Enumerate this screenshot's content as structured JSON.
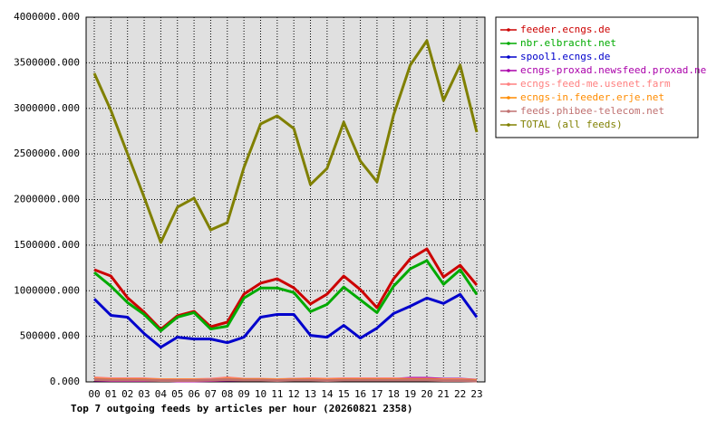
{
  "chart_data": {
    "type": "line",
    "title": "Top 7 outgoing feeds by articles per hour (20260821 2358)",
    "categories": [
      "00",
      "01",
      "02",
      "03",
      "04",
      "05",
      "06",
      "07",
      "08",
      "09",
      "10",
      "11",
      "12",
      "13",
      "14",
      "15",
      "16",
      "17",
      "18",
      "19",
      "20",
      "21",
      "22",
      "23"
    ],
    "ylim": [
      0,
      4000000
    ],
    "yticks": [
      {
        "value": 0,
        "label": "0.000"
      },
      {
        "value": 500000,
        "label": "500000.000"
      },
      {
        "value": 1000000,
        "label": "1000000.000"
      },
      {
        "value": 1500000,
        "label": "1500000.000"
      },
      {
        "value": 2000000,
        "label": "2000000.000"
      },
      {
        "value": 2500000,
        "label": "2500000.000"
      },
      {
        "value": 3000000,
        "label": "3000000.000"
      },
      {
        "value": 3500000,
        "label": "3500000.000"
      },
      {
        "value": 4000000,
        "label": "4000000.000"
      }
    ],
    "grid": true,
    "legend": "right",
    "series": [
      {
        "name": "feeder.ecngs.de",
        "color": "#cc0000",
        "values": [
          1231000,
          1161000,
          923000,
          764000,
          576000,
          725000,
          774000,
          605000,
          655000,
          963000,
          1082000,
          1131000,
          1032000,
          854000,
          963000,
          1161000,
          1012000,
          814000,
          1131000,
          1350000,
          1459000,
          1151000,
          1280000,
          1062000
        ]
      },
      {
        "name": "nbr.elbracht.net",
        "color": "#00aa00",
        "values": [
          1200000,
          1050000,
          870000,
          740000,
          560000,
          710000,
          760000,
          580000,
          610000,
          920000,
          1030000,
          1030000,
          980000,
          770000,
          850000,
          1040000,
          900000,
          760000,
          1050000,
          1240000,
          1330000,
          1070000,
          1230000,
          960000
        ]
      },
      {
        "name": "spool1.ecngs.de",
        "color": "#0000cc",
        "values": [
          910000,
          730000,
          710000,
          530000,
          380000,
          490000,
          470000,
          470000,
          430000,
          490000,
          710000,
          740000,
          740000,
          510000,
          490000,
          620000,
          480000,
          590000,
          750000,
          830000,
          920000,
          860000,
          960000,
          710000
        ]
      },
      {
        "name": "ecngs-proxad.newsfeed.proxad.net",
        "color": "#aa00aa",
        "values": [
          20000,
          15000,
          15000,
          15000,
          20000,
          10000,
          10000,
          15000,
          20000,
          20000,
          20000,
          20000,
          30000,
          30000,
          20000,
          20000,
          30000,
          30000,
          30000,
          40000,
          40000,
          30000,
          30000,
          20000
        ]
      },
      {
        "name": "ecngs-feed-me.usenet.farm",
        "color": "#ff8080",
        "values": [
          45000,
          35000,
          35000,
          35000,
          25000,
          25000,
          25000,
          30000,
          45000,
          30000,
          30000,
          25000,
          30000,
          35000,
          30000,
          35000,
          35000,
          35000,
          35000,
          30000,
          30000,
          25000,
          25000,
          20000
        ]
      },
      {
        "name": "ecngs-in.feeder.erje.net",
        "color": "#ff8c00",
        "values": [
          30000,
          25000,
          25000,
          25000,
          20000,
          20000,
          20000,
          20000,
          30000,
          25000,
          25000,
          20000,
          25000,
          25000,
          20000,
          25000,
          25000,
          25000,
          25000,
          25000,
          25000,
          20000,
          20000,
          15000
        ]
      },
      {
        "name": "feeds.phibee-telecom.net",
        "color": "#c07070",
        "values": [
          25000,
          20000,
          20000,
          20000,
          15000,
          15000,
          15000,
          20000,
          25000,
          20000,
          20000,
          15000,
          20000,
          20000,
          15000,
          20000,
          20000,
          20000,
          20000,
          20000,
          20000,
          15000,
          15000,
          10000
        ]
      },
      {
        "name": "TOTAL (all feeds)",
        "color": "#808000",
        "values": [
          3385000,
          2978000,
          2501000,
          2025000,
          1529000,
          1916000,
          2015000,
          1667000,
          1747000,
          2352000,
          2829000,
          2918000,
          2779000,
          2164000,
          2342000,
          2849000,
          2422000,
          2194000,
          2928000,
          3474000,
          3742000,
          3087000,
          3474000,
          2739000
        ]
      }
    ]
  }
}
